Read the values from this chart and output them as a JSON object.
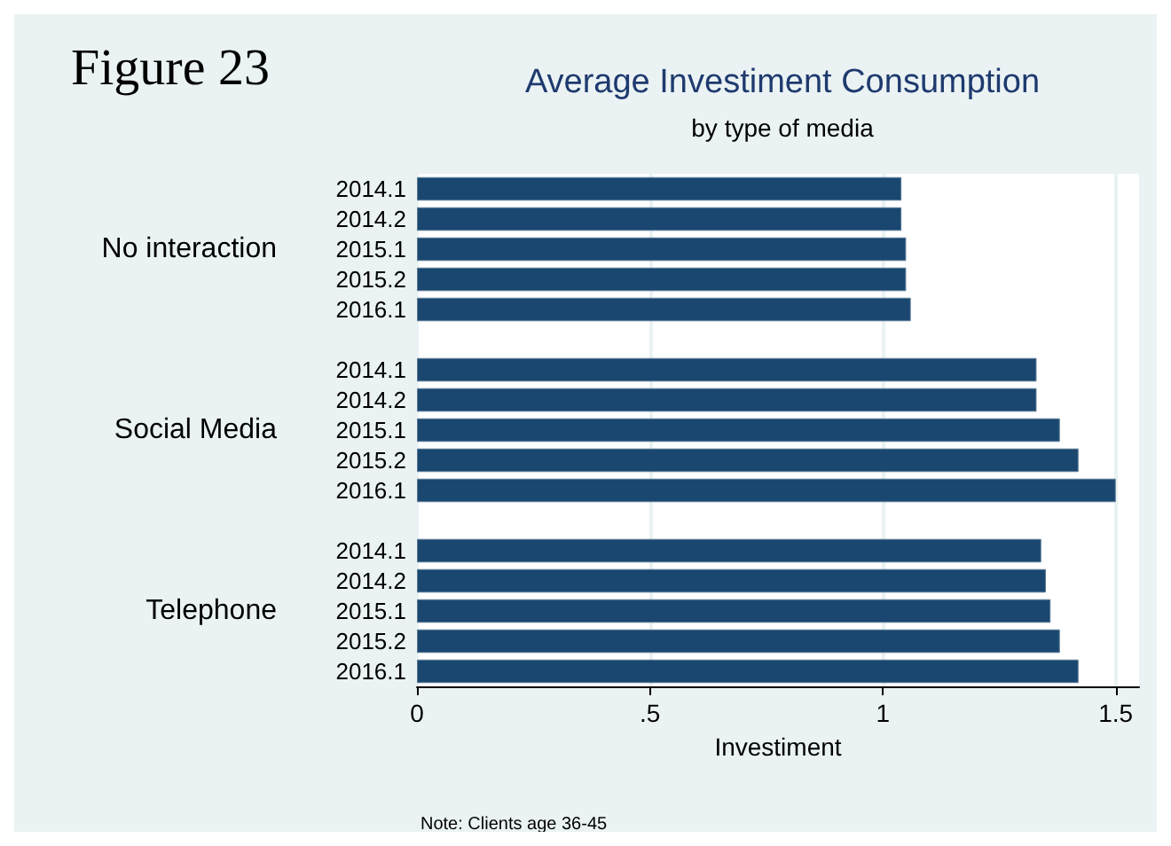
{
  "chart_data": {
    "type": "bar",
    "orientation": "horizontal",
    "title": "Average Investiment Consumption",
    "subtitle": "by type of media",
    "xlabel": "Investiment",
    "categories": [
      "2014.1",
      "2014.2",
      "2015.1",
      "2015.2",
      "2016.1",
      null,
      "2014.1",
      "2014.2",
      "2015.1",
      "2015.2",
      "2016.1",
      null,
      "2014.1",
      "2014.2",
      "2015.1",
      "2015.2",
      "2016.1"
    ],
    "values": [
      1.04,
      1.04,
      1.05,
      1.05,
      1.06,
      null,
      1.33,
      1.33,
      1.38,
      1.42,
      1.5,
      null,
      1.34,
      1.35,
      1.36,
      1.38,
      1.42
    ],
    "color": "#1a476f",
    "xlim": [
      0,
      1.55
    ],
    "xticks": [
      0,
      {
        "value": 0.5,
        "label": ".5"
      },
      1,
      1.5
    ],
    "grid": "x",
    "annotations": [
      "Figure 23",
      "No interaction",
      "Social Media",
      "Telephone",
      "Note: Clients age 36-45"
    ]
  }
}
